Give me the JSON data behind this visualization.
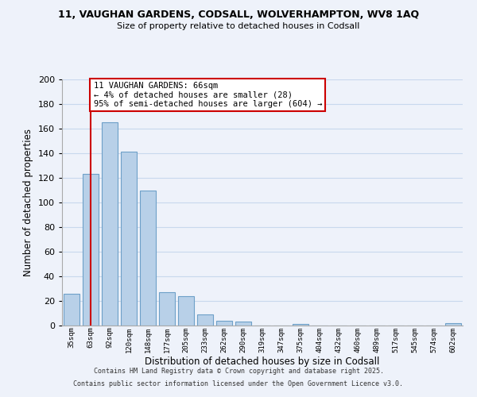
{
  "title1": "11, VAUGHAN GARDENS, CODSALL, WOLVERHAMPTON, WV8 1AQ",
  "title2": "Size of property relative to detached houses in Codsall",
  "xlabel": "Distribution of detached houses by size in Codsall",
  "ylabel": "Number of detached properties",
  "categories": [
    "35sqm",
    "63sqm",
    "92sqm",
    "120sqm",
    "148sqm",
    "177sqm",
    "205sqm",
    "233sqm",
    "262sqm",
    "290sqm",
    "319sqm",
    "347sqm",
    "375sqm",
    "404sqm",
    "432sqm",
    "460sqm",
    "489sqm",
    "517sqm",
    "545sqm",
    "574sqm",
    "602sqm"
  ],
  "values": [
    26,
    123,
    165,
    141,
    110,
    27,
    24,
    9,
    4,
    3,
    0,
    0,
    1,
    0,
    0,
    0,
    0,
    0,
    0,
    0,
    2
  ],
  "bar_color": "#b8d0e8",
  "bar_edge_color": "#6ea0c8",
  "grid_color": "#c8d8ed",
  "background_color": "#eef2fa",
  "property_line_x": 1,
  "property_line_color": "#cc0000",
  "annotation_text": "11 VAUGHAN GARDENS: 66sqm\n← 4% of detached houses are smaller (28)\n95% of semi-detached houses are larger (604) →",
  "annotation_box_color": "#ffffff",
  "annotation_box_edge": "#cc0000",
  "ylim": [
    0,
    200
  ],
  "yticks": [
    0,
    20,
    40,
    60,
    80,
    100,
    120,
    140,
    160,
    180,
    200
  ],
  "footer1": "Contains HM Land Registry data © Crown copyright and database right 2025.",
  "footer2": "Contains public sector information licensed under the Open Government Licence v3.0."
}
